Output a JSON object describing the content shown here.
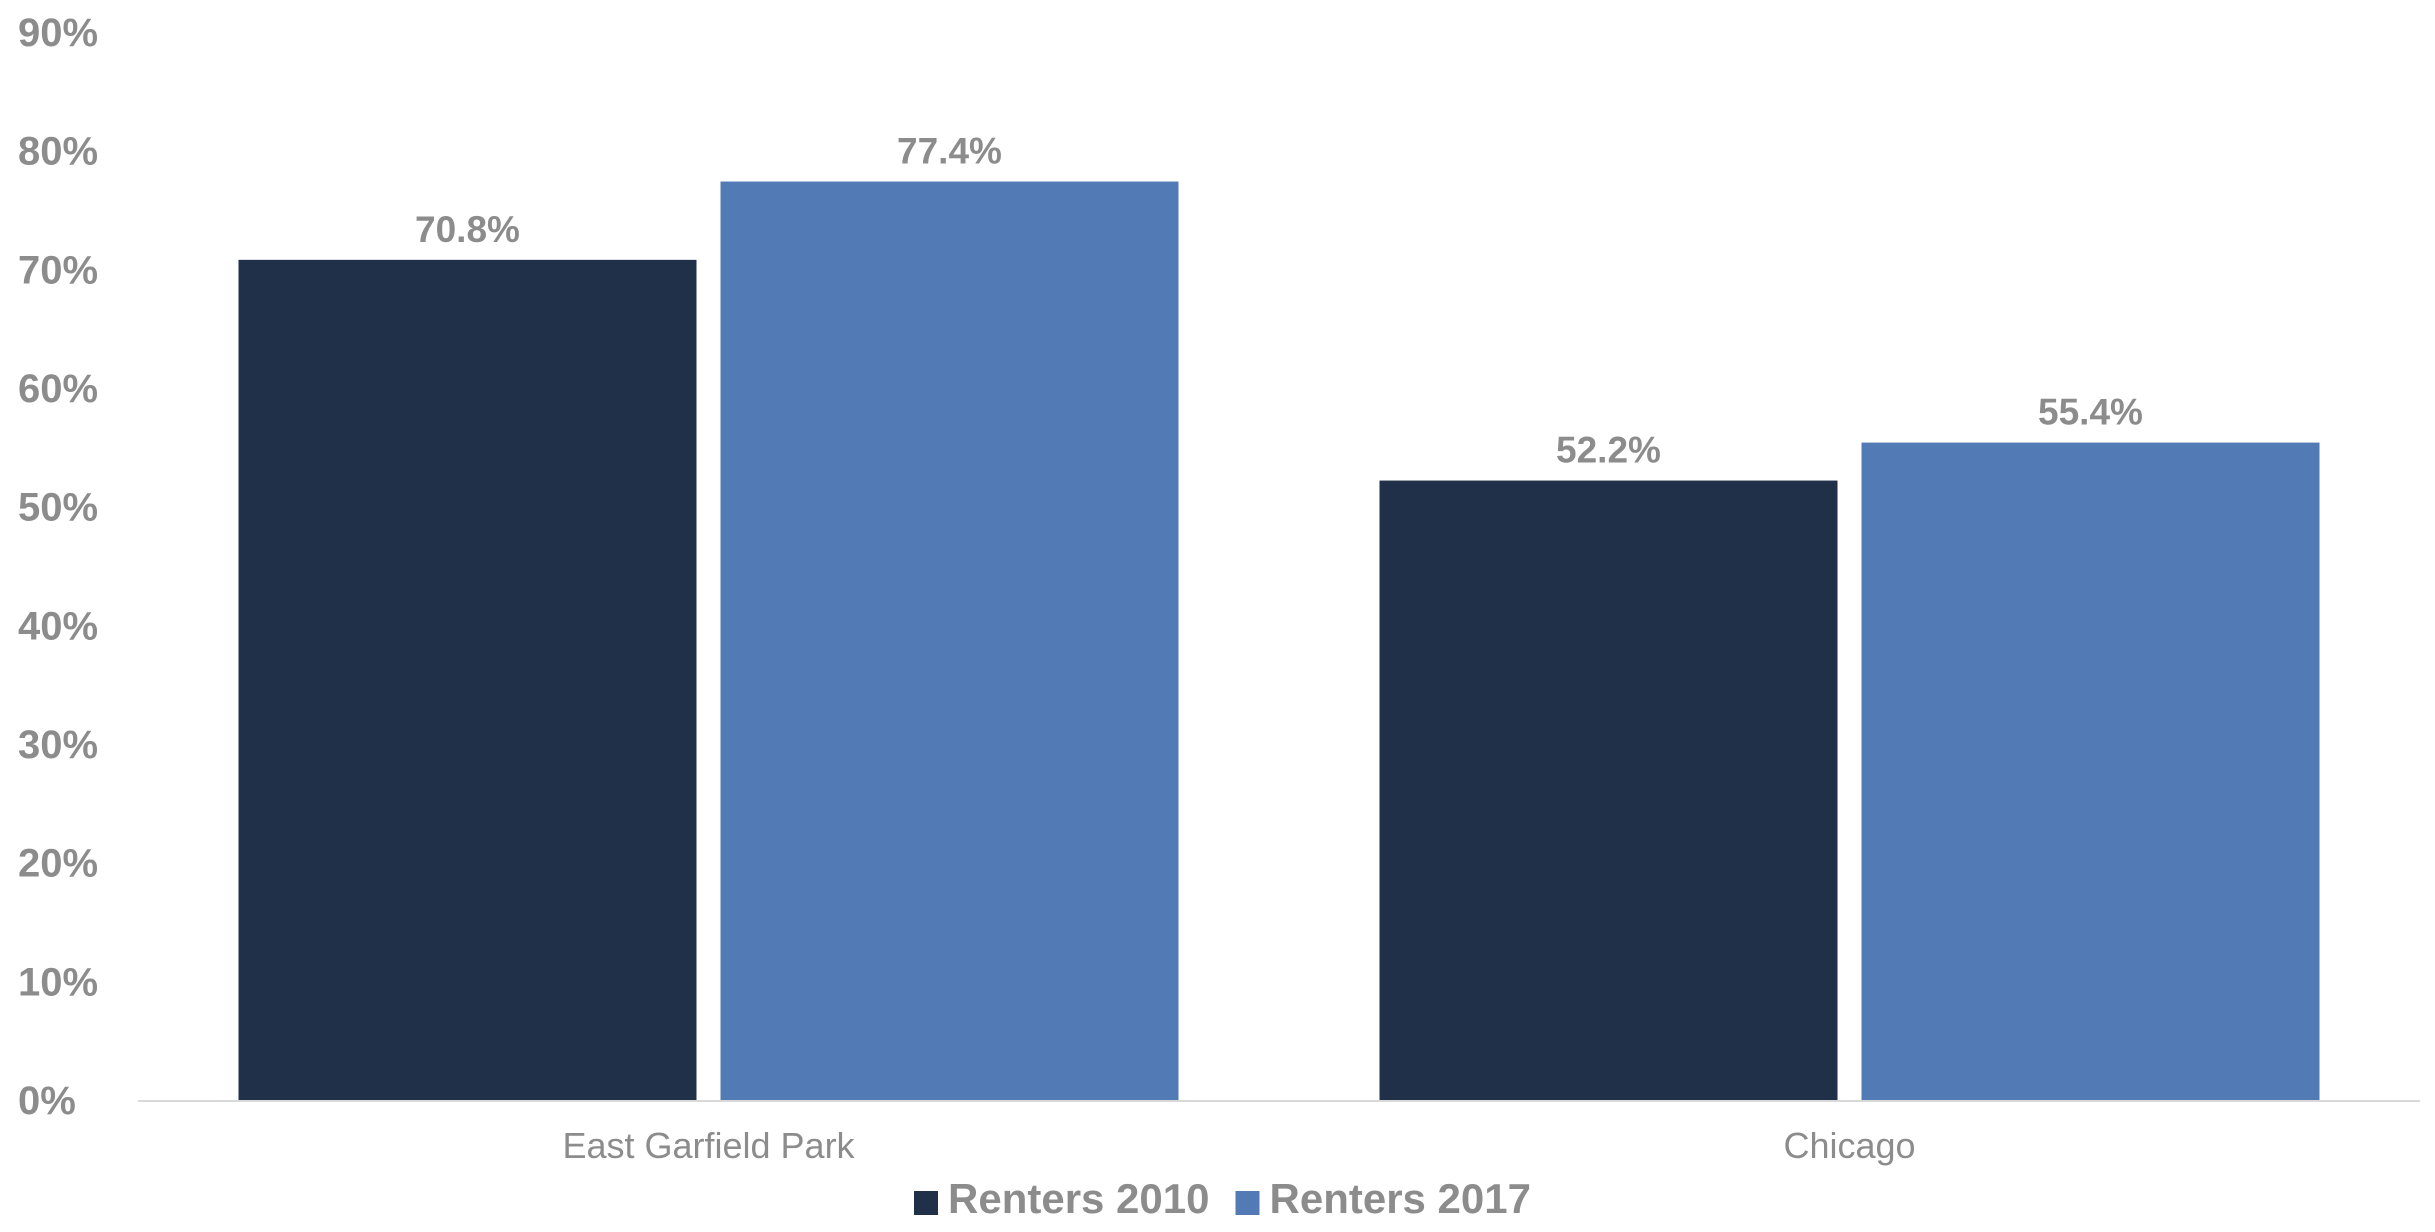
{
  "chart_data": {
    "type": "bar",
    "categories": [
      "East Garfield Park",
      "Chicago"
    ],
    "series": [
      {
        "name": "Renters 2010",
        "values": [
          70.8,
          52.2
        ],
        "color": "#203049"
      },
      {
        "name": "Renters 2017",
        "values": [
          77.4,
          55.4
        ],
        "color": "#527BB5"
      }
    ],
    "data_labels": [
      [
        "70.8%",
        "52.2%"
      ],
      [
        "77.4%",
        "55.4%"
      ]
    ],
    "y_ticks": [
      0,
      10,
      20,
      30,
      40,
      50,
      60,
      70,
      80,
      90
    ],
    "y_tick_labels": [
      "0%",
      "10%",
      "20%",
      "30%",
      "40%",
      "50%",
      "60%",
      "70%",
      "80%",
      "90%"
    ],
    "ylim": [
      0,
      90
    ],
    "title": "",
    "xlabel": "",
    "ylabel": "",
    "grid": false,
    "legend_position": "bottom-center",
    "axis_color": "#d9d9d9",
    "text_color": "#8c8c8c"
  }
}
